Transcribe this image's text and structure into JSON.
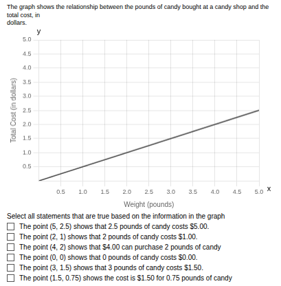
{
  "chart_data": {
    "type": "line",
    "title": "The graph shows the relationship between the pounds of candy bought at a candy shop and the total cost, in\ndollars.",
    "x_label": "Weight (pounds)",
    "y_label": "Total Cost (in dollars)",
    "x": [
      0,
      5.0
    ],
    "series": [
      {
        "name": null,
        "color": "#333333",
        "values": [
          0,
          2.5
        ]
      }
    ],
    "xlim": [
      0,
      5.0
    ],
    "ylim": [
      0,
      5.0
    ],
    "xticks": [
      0.5,
      {
        "value": 1.0,
        "label": "1.0"
      },
      1.5,
      {
        "value": 2.0,
        "label": "2.0"
      },
      2.5,
      {
        "value": 3.0,
        "label": "3.0"
      },
      3.5,
      {
        "value": 4.0,
        "label": "4.0"
      },
      4.5,
      {
        "value": 5.0,
        "label": "5.0"
      }
    ],
    "yticks": [
      0.5,
      {
        "value": 1.0,
        "label": "1.0"
      },
      1.5,
      {
        "value": 2.0,
        "label": "2.0"
      },
      2.5,
      {
        "value": 3.0,
        "label": "3.0"
      },
      3.5,
      {
        "value": 4.0,
        "label": "4.0"
      },
      4.5,
      {
        "value": 5.0,
        "label": "5.0"
      }
    ],
    "grid": true,
    "annotations": [
      {
        "text": "y",
        "x": 0,
        "y": 5.15
      },
      {
        "text": "x",
        "x": 5.12,
        "y": -0.28
      },
      "Select all statements that are true based on the information in the graph",
      "The point (5, 2.5) shows that 2.5 pounds of candy costs $5.00.",
      "The point (2, 1) shows that 2 pounds of candy costs $1.00.",
      "The point (4, 2) shows that $4.00 can purchase 2 pounds of candy",
      "The point (0, 0) shows that 0 pounds of candy costs $0.00.",
      "The point (3, 1.5) shows that 3 pounds of candy costs $1.50.",
      "The point (1.5, 0.75) shows the cost is $1.50 for 0.75 pounds of candy"
    ]
  }
}
